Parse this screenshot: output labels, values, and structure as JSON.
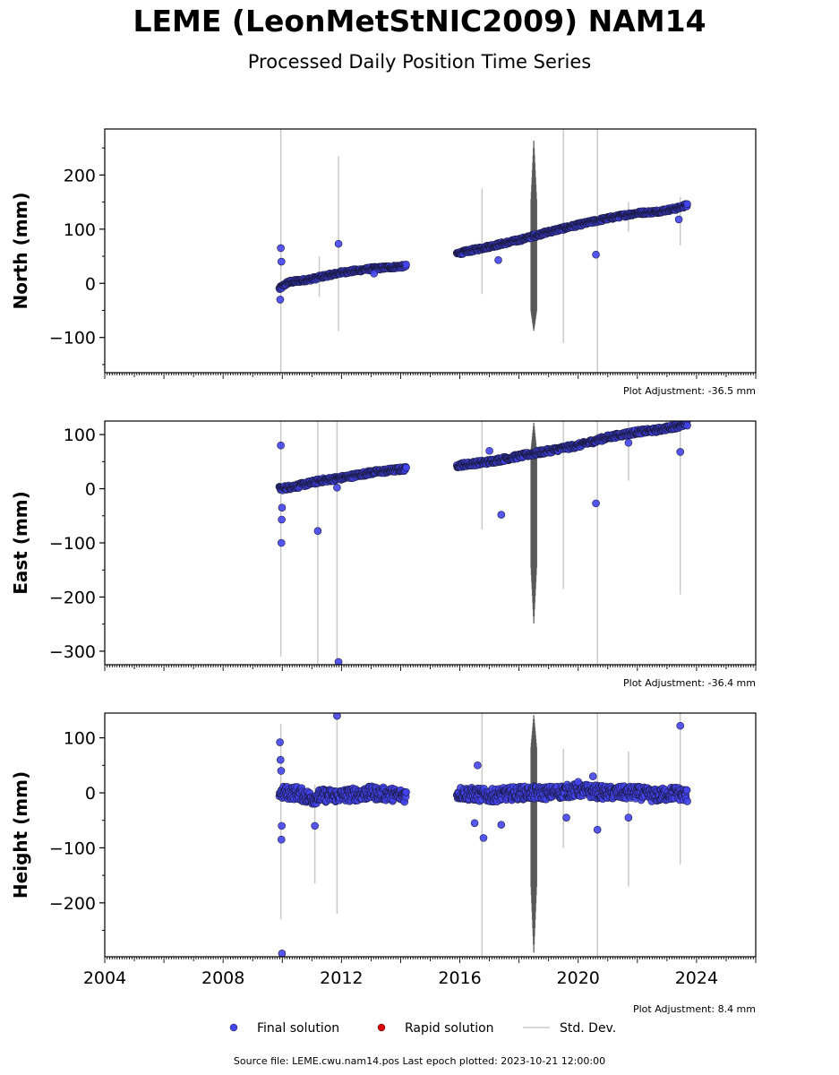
{
  "header": {
    "title": "LEME (LeonMetStNIC2009) NAM14",
    "subtitle": "Processed Daily Position Time Series"
  },
  "footer": {
    "source": "Source file: LEME.cwu.nam14.pos  Last epoch plotted: 2023-10-21 12:00:00"
  },
  "legend": {
    "items": [
      {
        "label": "Final solution",
        "marker": "dot",
        "color": "#4444ee"
      },
      {
        "label": "Rapid solution",
        "marker": "dot",
        "color": "#dd0000"
      },
      {
        "label": "Std. Dev.",
        "marker": "line",
        "color": "#cccccc"
      }
    ]
  },
  "chart_data": [
    {
      "type": "scatter",
      "ylabel": "North (mm)",
      "adjustment": "Plot Adjustment: -36.5 mm",
      "xlim": [
        2004.0,
        2026.0
      ],
      "ylim": [
        -165,
        285
      ],
      "yticks": [
        -100,
        0,
        100,
        200
      ],
      "xticks": [],
      "series": [
        {
          "name": "Final solution",
          "color": "#4444ee",
          "trend": [
            [
              2009.9,
              -10
            ],
            [
              2010.2,
              2
            ],
            [
              2011.0,
              8
            ],
            [
              2011.3,
              12
            ],
            [
              2012.0,
              20
            ],
            [
              2013.0,
              27
            ],
            [
              2014.2,
              32
            ],
            [
              2015.9,
              55
            ],
            [
              2017.0,
              68
            ],
            [
              2018.0,
              80
            ],
            [
              2019.0,
              95
            ],
            [
              2020.0,
              108
            ],
            [
              2021.0,
              120
            ],
            [
              2022.0,
              130
            ],
            [
              2022.6,
              132
            ],
            [
              2023.3,
              138
            ],
            [
              2023.7,
              145
            ]
          ],
          "noise": 3,
          "outliers": [
            [
              2009.95,
              65
            ],
            [
              2009.97,
              40
            ],
            [
              2009.93,
              -30
            ],
            [
              2011.9,
              73
            ],
            [
              2017.3,
              43
            ],
            [
              2020.6,
              53
            ],
            [
              2023.4,
              118
            ],
            [
              2013.1,
              18
            ]
          ]
        },
        {
          "name": "Rapid solution",
          "color": "#dd0000",
          "trend": [],
          "outliers": []
        }
      ],
      "std_dev_bars": [
        [
          2009.95,
          -165,
          285
        ],
        [
          2011.9,
          -88,
          235
        ],
        [
          2011.25,
          -25,
          50
        ],
        [
          2016.75,
          -20,
          175
        ],
        [
          2019.5,
          -110,
          285
        ],
        [
          2020.65,
          -165,
          285
        ],
        [
          2021.7,
          95,
          150
        ],
        [
          2023.45,
          70,
          160
        ]
      ],
      "std_dev_band": [
        2018.4,
        2018.6,
        -90,
        270
      ]
    },
    {
      "type": "scatter",
      "ylabel": "East (mm)",
      "adjustment": "Plot Adjustment: -36.4 mm",
      "xlim": [
        2004.0,
        2026.0
      ],
      "ylim": [
        -325,
        125
      ],
      "yticks": [
        -300,
        -200,
        -100,
        0,
        100
      ],
      "xticks": [],
      "series": [
        {
          "name": "Final solution",
          "color": "#4444ee",
          "trend": [
            [
              2009.9,
              0
            ],
            [
              2010.5,
              5
            ],
            [
              2011.3,
              15
            ],
            [
              2012.0,
              20
            ],
            [
              2013.0,
              30
            ],
            [
              2014.2,
              37
            ],
            [
              2015.9,
              43
            ],
            [
              2017.0,
              50
            ],
            [
              2018.0,
              60
            ],
            [
              2019.0,
              70
            ],
            [
              2020.0,
              80
            ],
            [
              2021.0,
              95
            ],
            [
              2022.0,
              105
            ],
            [
              2022.6,
              108
            ],
            [
              2023.3,
              115
            ],
            [
              2023.7,
              120
            ]
          ],
          "noise": 4,
          "outliers": [
            [
              2009.95,
              80
            ],
            [
              2009.97,
              -100
            ],
            [
              2009.98,
              -57
            ],
            [
              2009.99,
              -35
            ],
            [
              2011.2,
              -78
            ],
            [
              2011.85,
              2
            ],
            [
              2011.9,
              -320
            ],
            [
              2017.0,
              70
            ],
            [
              2017.4,
              -48
            ],
            [
              2020.6,
              -27
            ],
            [
              2023.45,
              68
            ],
            [
              2021.7,
              85
            ]
          ]
        },
        {
          "name": "Rapid solution",
          "color": "#dd0000",
          "trend": [],
          "outliers": []
        }
      ],
      "std_dev_bars": [
        [
          2009.95,
          -310,
          125
        ],
        [
          2011.2,
          -325,
          125
        ],
        [
          2011.85,
          -325,
          125
        ],
        [
          2016.75,
          -75,
          125
        ],
        [
          2019.5,
          -185,
          125
        ],
        [
          2020.65,
          -325,
          125
        ],
        [
          2021.7,
          15,
          125
        ],
        [
          2023.45,
          -195,
          125
        ]
      ],
      "std_dev_band": [
        2018.4,
        2018.6,
        -255,
        125
      ]
    },
    {
      "type": "scatter",
      "ylabel": "Height (mm)",
      "adjustment": "Plot Adjustment: 8.4 mm",
      "xlim": [
        2004.0,
        2026.0
      ],
      "ylim": [
        -298,
        145
      ],
      "yticks": [
        -200,
        -100,
        0,
        100
      ],
      "xticks": [
        "2004",
        "2008",
        "2012",
        "2016",
        "2020",
        "2024"
      ],
      "series": [
        {
          "name": "Final solution",
          "color": "#4444ee",
          "trend": [
            [
              2009.9,
              0
            ],
            [
              2010.5,
              0
            ],
            [
              2011.0,
              -10
            ],
            [
              2011.3,
              -5
            ],
            [
              2012.0,
              -5
            ],
            [
              2013.0,
              0
            ],
            [
              2014.2,
              -5
            ],
            [
              2015.9,
              0
            ],
            [
              2017.0,
              -5
            ],
            [
              2018.0,
              0
            ],
            [
              2019.0,
              0
            ],
            [
              2020.0,
              5
            ],
            [
              2021.0,
              0
            ],
            [
              2022.0,
              0
            ],
            [
              2022.6,
              -5
            ],
            [
              2023.3,
              0
            ],
            [
              2023.7,
              -5
            ]
          ],
          "noise": 12,
          "outliers": [
            [
              2009.92,
              92
            ],
            [
              2009.94,
              60
            ],
            [
              2009.96,
              40
            ],
            [
              2009.97,
              -85
            ],
            [
              2009.98,
              -60
            ],
            [
              2009.99,
              -292
            ],
            [
              2011.1,
              -60
            ],
            [
              2011.85,
              140
            ],
            [
              2016.6,
              50
            ],
            [
              2016.5,
              -55
            ],
            [
              2016.8,
              -82
            ],
            [
              2017.4,
              -58
            ],
            [
              2019.6,
              -45
            ],
            [
              2020.0,
              20
            ],
            [
              2020.5,
              30
            ],
            [
              2020.65,
              -67
            ],
            [
              2021.7,
              -45
            ],
            [
              2023.45,
              122
            ]
          ]
        },
        {
          "name": "Rapid solution",
          "color": "#dd0000",
          "trend": [],
          "outliers": []
        }
      ],
      "std_dev_bars": [
        [
          2009.95,
          -230,
          125
        ],
        [
          2011.1,
          -165,
          15
        ],
        [
          2011.85,
          -220,
          140
        ],
        [
          2016.75,
          -298,
          145
        ],
        [
          2019.5,
          -100,
          80
        ],
        [
          2020.65,
          -298,
          145
        ],
        [
          2021.7,
          -170,
          75
        ],
        [
          2023.45,
          -130,
          145
        ]
      ],
      "std_dev_band": [
        2018.4,
        2018.6,
        -298,
        145
      ]
    }
  ]
}
